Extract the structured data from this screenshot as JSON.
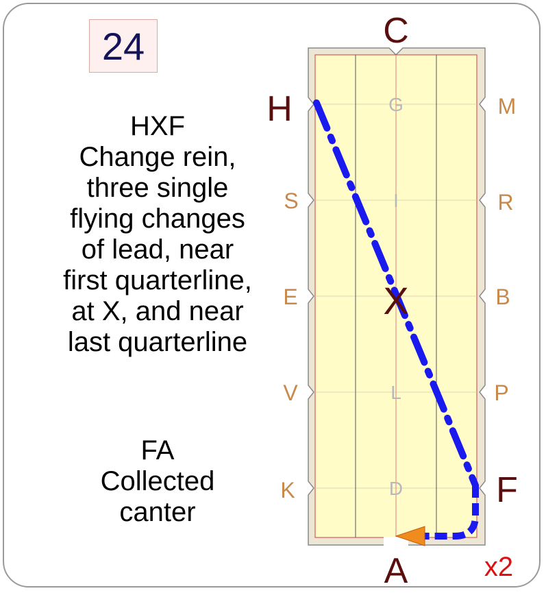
{
  "movement": {
    "number": "24",
    "main": {
      "lines": [
        "HXF",
        "Change rein,",
        "three single",
        "flying changes",
        "of lead, near",
        "first quarterline,",
        "at X, and near",
        "last quarterline"
      ]
    },
    "secondary": {
      "lines": [
        "FA",
        "Collected",
        "canter"
      ]
    },
    "repeat": "x2"
  },
  "arena": {
    "letters": {
      "C": "C",
      "A": "A",
      "H": "H",
      "F": "F",
      "X": "X",
      "M": "M",
      "R": "R",
      "B": "B",
      "P": "P",
      "S": "S",
      "E": "E",
      "V": "V",
      "K": "K",
      "G": "G",
      "I": "I",
      "L": "L",
      "D": "D"
    },
    "colors": {
      "surface": "#fffcc8",
      "border_fill": "#ede6d5",
      "centerline": "#e08080",
      "quarterline": "#555555",
      "outer_marker": "#c8894b",
      "inner_marker": "#b8b8b8",
      "key_letter": "#5a0f0f",
      "path": "#1a1aee",
      "arrow": "#f08c1e",
      "repeat": "#dd1111"
    }
  }
}
